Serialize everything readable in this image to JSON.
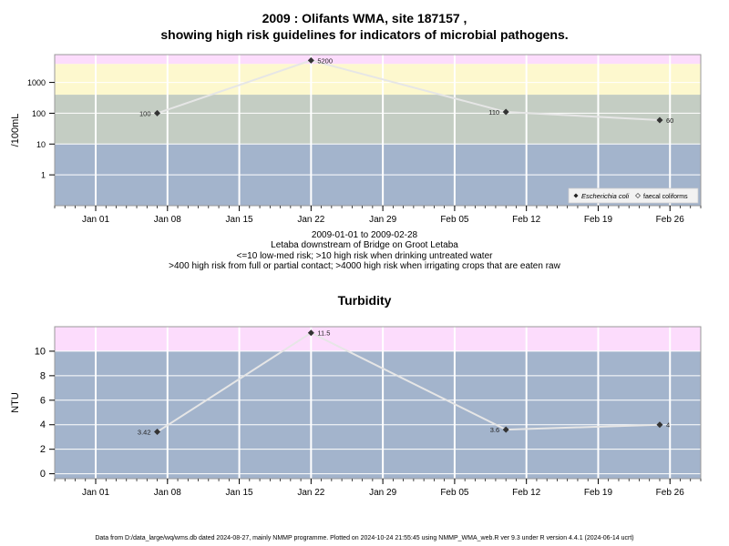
{
  "page": {
    "title_line1": "2009 : Olifants WMA, site 187157 ,",
    "title_line2": "showing high risk guidelines for indicators of microbial pathogens.",
    "sub_line1": "2009-01-01 to 2009-02-28",
    "sub_line2": "Letaba downstream of Bridge on Groot Letaba",
    "sub_line3": "<=10 low-med risk; >10 high risk when drinking untreated water",
    "sub_line4": ">400 high risk from full or partial contact; >4000 high risk when irrigating crops that are eaten raw",
    "footer": "Data from D:/data_large/wq/wms.db dated 2024-08-27, mainly NMMP programme. Plotted on 2024-10-24 21:55:45 using NMMP_WMA_web.R ver 9.3 under R version 4.4.1 (2024-06-14 ucrt)"
  },
  "colors": {
    "band_blue": "#a3b4cc",
    "band_green": "#c4cdc3",
    "band_yellow": "#fdf8ce",
    "band_pink": "#fcdcfc",
    "grid": "#ffffff",
    "line": "#e6e6e6",
    "marker": "#333333"
  },
  "chart_data": [
    {
      "type": "line",
      "title": "",
      "ylabel": "/100mL",
      "xlabel": "",
      "y_scale": "log",
      "ylim": [
        0.1,
        8000
      ],
      "xlim": [
        "2008-12-28",
        "2009-03-01"
      ],
      "x_ticks": [
        "Jan 01",
        "Jan 08",
        "Jan 15",
        "Jan 22",
        "Jan 29",
        "Feb 05",
        "Feb 12",
        "Feb 19",
        "Feb 26"
      ],
      "x_tick_dates": [
        "2009-01-01",
        "2009-01-08",
        "2009-01-15",
        "2009-01-22",
        "2009-01-29",
        "2009-02-05",
        "2009-02-12",
        "2009-02-19",
        "2009-02-26"
      ],
      "y_ticks": [
        "1",
        "10",
        "100",
        "1000"
      ],
      "y_tick_values": [
        1,
        10,
        100,
        1000
      ],
      "bands": [
        {
          "from": 0.1,
          "to": 10,
          "color": "#a3b4cc"
        },
        {
          "from": 10,
          "to": 400,
          "color": "#c4cdc3"
        },
        {
          "from": 400,
          "to": 4000,
          "color": "#fdf8ce"
        },
        {
          "from": 4000,
          "to": 8000,
          "color": "#fcdcfc"
        }
      ],
      "series": [
        {
          "name": "Escherichia coli",
          "marker": "filled-diamond",
          "x": [
            "2009-01-07",
            "2009-01-22",
            "2009-02-10",
            "2009-02-25"
          ],
          "y": [
            100,
            5200,
            110,
            60
          ],
          "labels": [
            "100",
            "5200",
            "110",
            "60"
          ]
        }
      ],
      "legend": {
        "placement": "bottom-right",
        "entries": [
          {
            "label": "Escherichia coli",
            "marker": "filled-diamond"
          },
          {
            "label": "faecal coliforms",
            "marker": "open-diamond"
          }
        ]
      },
      "grid": true
    },
    {
      "type": "line",
      "title": "Turbidity",
      "ylabel": "NTU",
      "xlabel": "",
      "ylim": [
        -0.4,
        12
      ],
      "xlim": [
        "2008-12-28",
        "2009-03-01"
      ],
      "x_ticks": [
        "Jan 01",
        "Jan 08",
        "Jan 15",
        "Jan 22",
        "Jan 29",
        "Feb 05",
        "Feb 12",
        "Feb 19",
        "Feb 26"
      ],
      "x_tick_dates": [
        "2009-01-01",
        "2009-01-08",
        "2009-01-15",
        "2009-01-22",
        "2009-01-29",
        "2009-02-05",
        "2009-02-12",
        "2009-02-19",
        "2009-02-26"
      ],
      "y_ticks": [
        "0",
        "2",
        "4",
        "6",
        "8",
        "10"
      ],
      "y_tick_values": [
        0,
        2,
        4,
        6,
        8,
        10
      ],
      "bands": [
        {
          "from": -0.4,
          "to": 10,
          "color": "#a3b4cc"
        },
        {
          "from": 10,
          "to": 12,
          "color": "#fcdcfc"
        }
      ],
      "series": [
        {
          "x": [
            "2009-01-07",
            "2009-01-22",
            "2009-02-10",
            "2009-02-25"
          ],
          "y": [
            3.42,
            11.5,
            3.6,
            4
          ],
          "labels": [
            "3.42",
            "11.5",
            "3.6",
            "4"
          ]
        }
      ],
      "grid": true
    }
  ]
}
